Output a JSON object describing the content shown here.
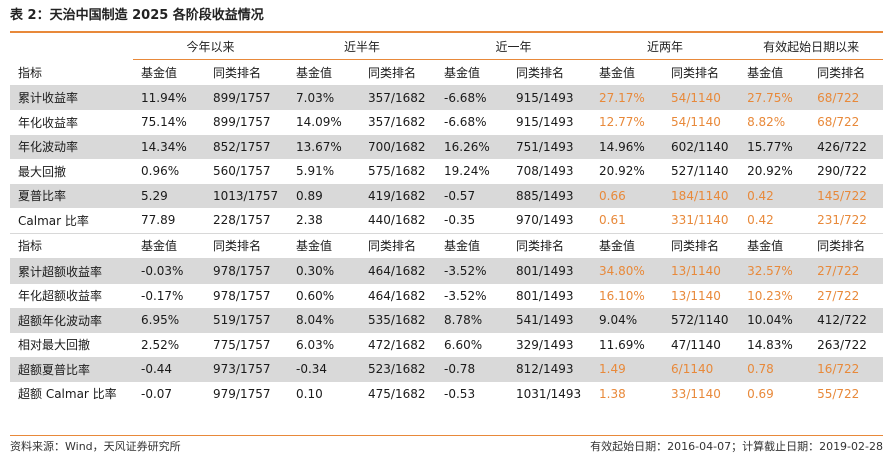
{
  "title": "表 2：天治中国制造 2025 各阶段收益情况",
  "period_headers": [
    "今年以来",
    "近半年",
    "近一年",
    "近两年",
    "有效起始日期以来"
  ],
  "colors": {
    "accent": "#e8893a",
    "shaded_row": "#d9d9d9"
  },
  "sections": [
    {
      "header": [
        "指标",
        "基金值",
        "同类排名",
        "基金值",
        "同类排名",
        "基金值",
        "同类排名",
        "基金值",
        "同类排名",
        "基金值",
        "同类排名"
      ],
      "rows": [
        {
          "shaded": true,
          "highlight": [
            false,
            false,
            false,
            false,
            false,
            false,
            false,
            true,
            true,
            true,
            true
          ],
          "cells": [
            "累计收益率",
            "11.94%",
            "899/1757",
            "7.03%",
            "357/1682",
            "-6.68%",
            "915/1493",
            "27.17%",
            "54/1140",
            "27.75%",
            "68/722"
          ]
        },
        {
          "shaded": false,
          "highlight": [
            false,
            false,
            false,
            false,
            false,
            false,
            false,
            true,
            true,
            true,
            true
          ],
          "cells": [
            "年化收益率",
            "75.14%",
            "899/1757",
            "14.09%",
            "357/1682",
            "-6.68%",
            "915/1493",
            "12.77%",
            "54/1140",
            "8.82%",
            "68/722"
          ]
        },
        {
          "shaded": true,
          "highlight": [
            false,
            false,
            false,
            false,
            false,
            false,
            false,
            false,
            false,
            false,
            false
          ],
          "cells": [
            "年化波动率",
            "14.34%",
            "852/1757",
            "13.67%",
            "700/1682",
            "16.26%",
            "751/1493",
            "14.96%",
            "602/1140",
            "15.77%",
            "426/722"
          ]
        },
        {
          "shaded": false,
          "highlight": [
            false,
            false,
            false,
            false,
            false,
            false,
            false,
            false,
            false,
            false,
            false
          ],
          "cells": [
            "最大回撤",
            "0.96%",
            "560/1757",
            "5.91%",
            "575/1682",
            "19.24%",
            "708/1493",
            "20.92%",
            "527/1140",
            "20.92%",
            "290/722"
          ]
        },
        {
          "shaded": true,
          "highlight": [
            false,
            false,
            false,
            false,
            false,
            false,
            false,
            true,
            true,
            true,
            true
          ],
          "cells": [
            "夏普比率",
            "5.29",
            "1013/1757",
            "0.89",
            "419/1682",
            "-0.57",
            "885/1493",
            "0.66",
            "184/1140",
            "0.42",
            "145/722"
          ]
        },
        {
          "shaded": false,
          "highlight": [
            false,
            false,
            false,
            false,
            false,
            false,
            false,
            true,
            true,
            true,
            true
          ],
          "cells": [
            "Calmar 比率",
            "77.89",
            "228/1757",
            "2.38",
            "440/1682",
            "-0.35",
            "970/1493",
            "0.61",
            "331/1140",
            "0.42",
            "231/722"
          ]
        }
      ]
    },
    {
      "header": [
        "指标",
        "基金值",
        "同类排名",
        "基金值",
        "同类排名",
        "基金值",
        "同类排名",
        "基金值",
        "同类排名",
        "基金值",
        "同类排名"
      ],
      "rows": [
        {
          "shaded": true,
          "highlight": [
            false,
            false,
            false,
            false,
            false,
            false,
            false,
            true,
            true,
            true,
            true
          ],
          "cells": [
            "累计超额收益率",
            "-0.03%",
            "978/1757",
            "0.30%",
            "464/1682",
            "-3.52%",
            "801/1493",
            "34.80%",
            "13/1140",
            "32.57%",
            "27/722"
          ]
        },
        {
          "shaded": false,
          "highlight": [
            false,
            false,
            false,
            false,
            false,
            false,
            false,
            true,
            true,
            true,
            true
          ],
          "cells": [
            "年化超额收益率",
            "-0.17%",
            "978/1757",
            "0.60%",
            "464/1682",
            "-3.52%",
            "801/1493",
            "16.10%",
            "13/1140",
            "10.23%",
            "27/722"
          ]
        },
        {
          "shaded": true,
          "highlight": [
            false,
            false,
            false,
            false,
            false,
            false,
            false,
            false,
            false,
            false,
            false
          ],
          "cells": [
            "超额年化波动率",
            "6.95%",
            "519/1757",
            "8.04%",
            "535/1682",
            "8.78%",
            "541/1493",
            "9.04%",
            "572/1140",
            "10.04%",
            "412/722"
          ]
        },
        {
          "shaded": false,
          "highlight": [
            false,
            false,
            false,
            false,
            false,
            false,
            false,
            false,
            false,
            false,
            false
          ],
          "cells": [
            "相对最大回撤",
            "2.52%",
            "775/1757",
            "6.03%",
            "472/1682",
            "6.60%",
            "329/1493",
            "11.69%",
            "47/1140",
            "14.83%",
            "263/722"
          ]
        },
        {
          "shaded": true,
          "highlight": [
            false,
            false,
            false,
            false,
            false,
            false,
            false,
            true,
            true,
            true,
            true
          ],
          "cells": [
            "超额夏普比率",
            "-0.44",
            "973/1757",
            "-0.34",
            "523/1682",
            "-0.78",
            "812/1493",
            "1.49",
            "6/1140",
            "0.78",
            "16/722"
          ]
        },
        {
          "shaded": false,
          "highlight": [
            false,
            false,
            false,
            false,
            false,
            false,
            false,
            true,
            true,
            true,
            true
          ],
          "cells": [
            "超额 Calmar 比率",
            "-0.07",
            "979/1757",
            "0.10",
            "475/1682",
            "-0.53",
            "1031/1493",
            "1.38",
            "33/1140",
            "0.69",
            "55/722"
          ]
        }
      ]
    }
  ],
  "footer": {
    "source": "资料来源：Wind，天风证券研究所",
    "dates": "有效起始日期：2016-04-07；计算截止日期：2019-02-28"
  }
}
